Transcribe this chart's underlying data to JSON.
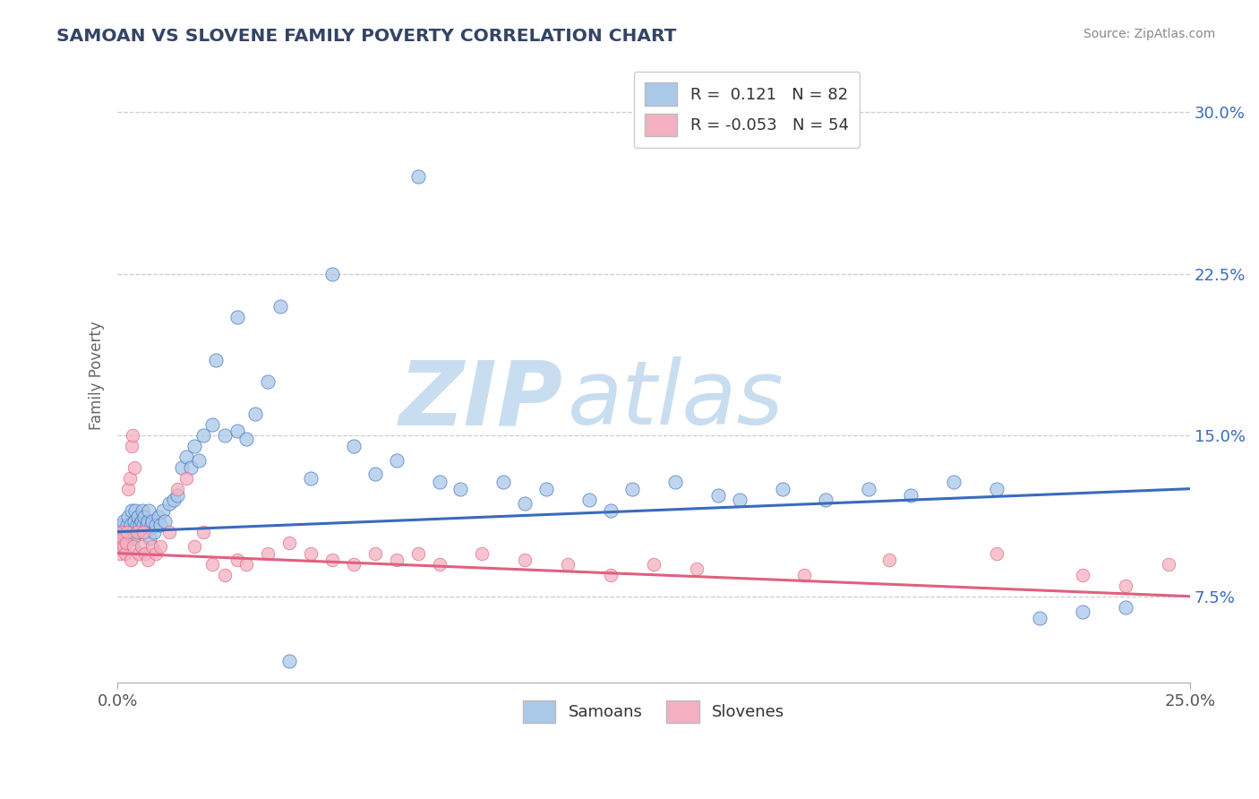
{
  "title": "SAMOAN VS SLOVENE FAMILY POVERTY CORRELATION CHART",
  "source": "Source: ZipAtlas.com",
  "xlim": [
    0.0,
    25.0
  ],
  "ylim": [
    3.5,
    32.0
  ],
  "yticks": [
    7.5,
    15.0,
    22.5,
    30.0
  ],
  "xticks": [
    0.0,
    25.0
  ],
  "samoan_R": "0.121",
  "samoan_N": "82",
  "slovene_R": "-0.053",
  "slovene_N": "54",
  "samoan_color": "#aac8e8",
  "slovene_color": "#f4b0c0",
  "samoan_line_color": "#3a6bbd",
  "slovene_line_color": "#e06080",
  "watermark_zip": "ZIP",
  "watermark_atlas": "atlas",
  "watermark_color": "#d8e8f4",
  "legend_label_samoan": "Samoans",
  "legend_label_slovene": "Slovenes",
  "ylabel": "Family Poverty",
  "background_color": "#ffffff",
  "grid_color": "#cccccc",
  "title_color": "#334466",
  "samoan_x": [
    0.05,
    0.08,
    0.1,
    0.12,
    0.15,
    0.18,
    0.2,
    0.22,
    0.25,
    0.28,
    0.3,
    0.32,
    0.35,
    0.38,
    0.4,
    0.42,
    0.45,
    0.48,
    0.5,
    0.52,
    0.55,
    0.58,
    0.6,
    0.62,
    0.65,
    0.68,
    0.7,
    0.72,
    0.75,
    0.78,
    0.8,
    0.85,
    0.9,
    0.95,
    1.0,
    1.05,
    1.1,
    1.2,
    1.3,
    1.4,
    1.5,
    1.6,
    1.7,
    1.8,
    1.9,
    2.0,
    2.2,
    2.5,
    2.8,
    3.0,
    3.2,
    3.5,
    3.8,
    4.5,
    5.5,
    6.0,
    6.5,
    7.5,
    8.0,
    9.0,
    10.0,
    11.0,
    12.0,
    13.0,
    14.0,
    14.5,
    15.5,
    16.5,
    17.5,
    18.5,
    19.5,
    20.5,
    21.5,
    22.5,
    23.5,
    5.0,
    7.0,
    9.5,
    11.5,
    4.0,
    2.3,
    2.8
  ],
  "samoan_y": [
    10.5,
    10.2,
    9.8,
    10.8,
    11.0,
    10.5,
    10.2,
    10.8,
    11.2,
    10.5,
    10.8,
    11.5,
    10.5,
    10.2,
    11.0,
    11.5,
    10.8,
    11.2,
    10.5,
    10.8,
    11.0,
    11.5,
    10.8,
    11.2,
    10.5,
    10.8,
    11.0,
    11.5,
    10.2,
    10.8,
    11.0,
    10.5,
    10.8,
    11.2,
    10.8,
    11.5,
    11.0,
    11.8,
    12.0,
    12.2,
    13.5,
    14.0,
    13.5,
    14.5,
    13.8,
    15.0,
    15.5,
    15.0,
    15.2,
    14.8,
    16.0,
    17.5,
    21.0,
    13.0,
    14.5,
    13.2,
    13.8,
    12.8,
    12.5,
    12.8,
    12.5,
    12.0,
    12.5,
    12.8,
    12.2,
    12.0,
    12.5,
    12.0,
    12.5,
    12.2,
    12.8,
    12.5,
    6.5,
    6.8,
    7.0,
    22.5,
    27.0,
    11.8,
    11.5,
    4.5,
    18.5,
    20.5
  ],
  "slovene_x": [
    0.05,
    0.08,
    0.1,
    0.12,
    0.15,
    0.18,
    0.2,
    0.22,
    0.25,
    0.28,
    0.3,
    0.32,
    0.35,
    0.38,
    0.4,
    0.45,
    0.5,
    0.55,
    0.6,
    0.65,
    0.7,
    0.8,
    0.9,
    1.0,
    1.2,
    1.4,
    1.6,
    1.8,
    2.0,
    2.2,
    2.5,
    2.8,
    3.0,
    3.5,
    4.0,
    4.5,
    5.0,
    5.5,
    6.0,
    6.5,
    7.0,
    7.5,
    8.5,
    9.5,
    10.5,
    11.5,
    12.5,
    13.5,
    16.0,
    18.0,
    20.5,
    22.5,
    23.5,
    24.5
  ],
  "slovene_y": [
    9.5,
    9.8,
    10.5,
    10.2,
    9.8,
    9.5,
    10.0,
    10.5,
    12.5,
    13.0,
    9.2,
    14.5,
    15.0,
    9.8,
    13.5,
    10.5,
    9.5,
    9.8,
    10.5,
    9.5,
    9.2,
    9.8,
    9.5,
    9.8,
    10.5,
    12.5,
    13.0,
    9.8,
    10.5,
    9.0,
    8.5,
    9.2,
    9.0,
    9.5,
    10.0,
    9.5,
    9.2,
    9.0,
    9.5,
    9.2,
    9.5,
    9.0,
    9.5,
    9.2,
    9.0,
    8.5,
    9.0,
    8.8,
    8.5,
    9.2,
    9.5,
    8.5,
    8.0,
    9.0
  ]
}
